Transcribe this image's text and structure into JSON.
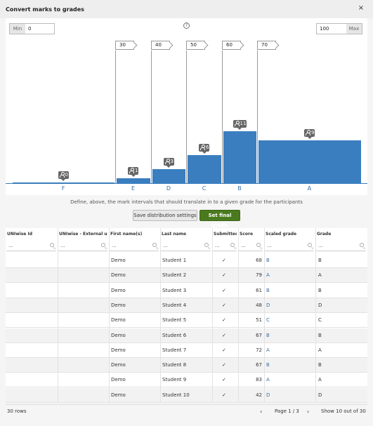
{
  "dialog": {
    "title": "Convert marks to grades",
    "close_glyph": "×"
  },
  "bounds": {
    "min_label": "Min",
    "min_value": "0",
    "max_label": "Max",
    "max_value": "100"
  },
  "help_glyph": "?",
  "chart_data": {
    "type": "bar",
    "title": "",
    "xlabel": "",
    "ylabel": "",
    "score_range": [
      0,
      100
    ],
    "cut_points": [
      30,
      40,
      50,
      60,
      70
    ],
    "grades": [
      {
        "grade": "F",
        "from": 0,
        "to": 30,
        "count": 0
      },
      {
        "grade": "E",
        "from": 30,
        "to": 40,
        "count": 1
      },
      {
        "grade": "D",
        "from": 40,
        "to": 50,
        "count": 3
      },
      {
        "grade": "C",
        "from": 50,
        "to": 60,
        "count": 6
      },
      {
        "grade": "B",
        "from": 60,
        "to": 70,
        "count": 11
      },
      {
        "grade": "A",
        "from": 70,
        "to": 100,
        "count": 9
      }
    ],
    "count_max": 11,
    "bar_color": "#3a7ebf",
    "grid": false,
    "legend": "none"
  },
  "hint_text": "Define, above, the mark intervals that should translate in to a given grade for the participants",
  "buttons": {
    "save_distribution": "Save distribution settings",
    "set_final_grade": "Set final grade"
  },
  "colors": {
    "accent": "#3a7ebf",
    "primary_button": "#4a7a1e",
    "link": "#3a6fa8"
  },
  "table": {
    "columns": [
      "UNIwise Id",
      "UNIwise - External user id",
      "First name(s)",
      "Last name",
      "Submitted",
      "Score",
      "Scaled grade",
      "Grade"
    ],
    "filter_placeholder": "...",
    "submitted_glyph": "✓",
    "rows": [
      {
        "uniwise_id": "",
        "external_id": "",
        "first_name": "Demo",
        "last_name": "Student 1",
        "score": "68",
        "scaled_grade": "B",
        "grade": "B"
      },
      {
        "uniwise_id": "",
        "external_id": "",
        "first_name": "Demo",
        "last_name": "Student 2",
        "score": "79",
        "scaled_grade": "A",
        "grade": "A"
      },
      {
        "uniwise_id": "",
        "external_id": "",
        "first_name": "Demo",
        "last_name": "Student 3",
        "score": "61",
        "scaled_grade": "B",
        "grade": "B"
      },
      {
        "uniwise_id": "",
        "external_id": "",
        "first_name": "Demo",
        "last_name": "Student 4",
        "score": "48",
        "scaled_grade": "D",
        "grade": "D"
      },
      {
        "uniwise_id": "",
        "external_id": "",
        "first_name": "Demo",
        "last_name": "Student 5",
        "score": "51",
        "scaled_grade": "C",
        "grade": "C"
      },
      {
        "uniwise_id": "",
        "external_id": "",
        "first_name": "Demo",
        "last_name": "Student 6",
        "score": "67",
        "scaled_grade": "B",
        "grade": "B"
      },
      {
        "uniwise_id": "",
        "external_id": "",
        "first_name": "Demo",
        "last_name": "Student 7",
        "score": "72",
        "scaled_grade": "A",
        "grade": "A"
      },
      {
        "uniwise_id": "",
        "external_id": "",
        "first_name": "Demo",
        "last_name": "Student 8",
        "score": "67",
        "scaled_grade": "B",
        "grade": "B"
      },
      {
        "uniwise_id": "",
        "external_id": "",
        "first_name": "Demo",
        "last_name": "Student 9",
        "score": "83",
        "scaled_grade": "A",
        "grade": "A"
      },
      {
        "uniwise_id": "",
        "external_id": "",
        "first_name": "Demo",
        "last_name": "Student 10",
        "score": "42",
        "scaled_grade": "D",
        "grade": "D"
      }
    ]
  },
  "footer": {
    "rows_count": "30 rows",
    "prev_glyph": "‹",
    "next_glyph": "›",
    "page_info": "Page 1 / 3",
    "show_info": "Show 10 out of 30"
  }
}
